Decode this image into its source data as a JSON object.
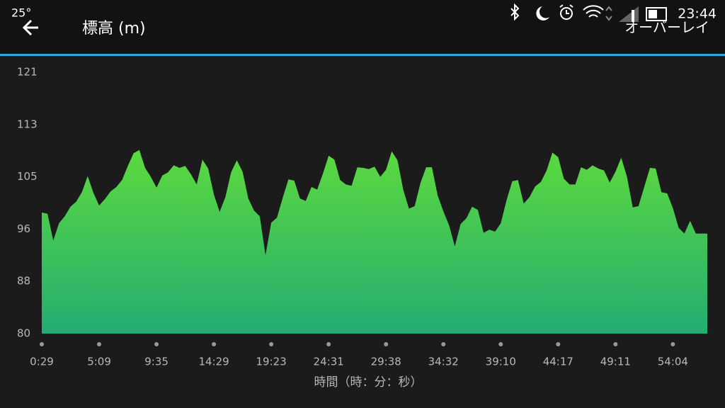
{
  "status_bar": {
    "temperature": "25°",
    "time": "23:44"
  },
  "header": {
    "title": "標高 (m)",
    "action": "オーバーレイ"
  },
  "chart_data": {
    "type": "area",
    "xlabel": "時間（時：分：秒）",
    "categories": [
      "0:29",
      null,
      null,
      null,
      null,
      null,
      null,
      null,
      null,
      null,
      "5:09",
      null,
      null,
      null,
      null,
      null,
      null,
      null,
      null,
      null,
      "9:35",
      null,
      null,
      null,
      null,
      null,
      null,
      null,
      null,
      null,
      "14:29",
      null,
      null,
      null,
      null,
      null,
      null,
      null,
      null,
      null,
      "19:23",
      null,
      null,
      null,
      null,
      null,
      null,
      null,
      null,
      null,
      "24:31",
      null,
      null,
      null,
      null,
      null,
      null,
      null,
      null,
      null,
      "29:38",
      null,
      null,
      null,
      null,
      null,
      null,
      null,
      null,
      null,
      "34:32",
      null,
      null,
      null,
      null,
      null,
      null,
      null,
      null,
      null,
      "39:10",
      null,
      null,
      null,
      null,
      null,
      null,
      null,
      null,
      null,
      "44:17",
      null,
      null,
      null,
      null,
      null,
      null,
      null,
      null,
      null,
      "49:11",
      null,
      null,
      null,
      null,
      null,
      null,
      null,
      null,
      null,
      "54:04",
      null,
      null,
      null,
      null,
      null,
      null
    ],
    "values": [
      99.0,
      98.8,
      94.6,
      97.3,
      98.4,
      99.9,
      100.7,
      102.2,
      104.7,
      102.1,
      100.1,
      101.1,
      102.3,
      103.0,
      104.1,
      106.3,
      108.3,
      108.8,
      106.0,
      104.6,
      102.9,
      104.8,
      105.3,
      106.4,
      106.0,
      106.3,
      105.0,
      103.4,
      107.3,
      105.9,
      101.8,
      99.1,
      101.4,
      105.3,
      107.2,
      105.4,
      101.2,
      99.3,
      98.4,
      92.3,
      97.4,
      98.2,
      101.3,
      104.2,
      104.0,
      101.2,
      100.8,
      103.0,
      102.6,
      105.1,
      107.9,
      107.3,
      104.1,
      103.4,
      103.2,
      106.1,
      106.0,
      105.8,
      106.2,
      104.6,
      105.7,
      108.6,
      107.2,
      102.6,
      99.6,
      100.0,
      103.6,
      106.1,
      106.1,
      101.7,
      99.2,
      97.0,
      93.7,
      97.2,
      98.1,
      99.9,
      99.4,
      95.8,
      96.3,
      96.0,
      97.3,
      100.9,
      103.9,
      104.1,
      100.4,
      101.4,
      103.1,
      103.8,
      105.6,
      108.4,
      107.7,
      104.3,
      103.4,
      103.4,
      106.1,
      105.7,
      106.4,
      105.9,
      105.6,
      103.7,
      105.4,
      107.6,
      104.6,
      99.8,
      100.0,
      103.0,
      106.0,
      105.9,
      102.2,
      102.0,
      99.7,
      96.6,
      95.7,
      97.7,
      95.7,
      95.7,
      95.7
    ],
    "color_top": "#5cd93e",
    "color_bottom": "#23ad72",
    "ylim": [
      80,
      121
    ],
    "yticks": [
      80,
      {
        "value": 88.2,
        "label": "88"
      },
      {
        "value": 96.4,
        "label": "96"
      },
      {
        "value": 104.6,
        "label": "105"
      },
      {
        "value": 112.8,
        "label": "113"
      },
      121
    ],
    "grid": false
  }
}
